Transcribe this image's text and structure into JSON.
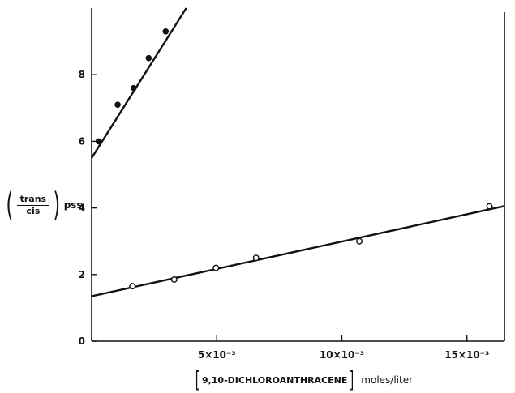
{
  "chart_data": {
    "type": "scatter",
    "title": "",
    "ylabel": {
      "numerator": "trans",
      "denominator": "cis",
      "subscript": "pss"
    },
    "xlabel": {
      "compound": "9,10-DICHLOROANTHRACENE",
      "unit": "moles/liter"
    },
    "xlim": [
      0,
      0.0165
    ],
    "ylim": [
      0,
      10
    ],
    "x_ticks": [
      {
        "value": 0.005,
        "label": "5×10⁻³"
      },
      {
        "value": 0.01,
        "label": "10×10⁻³"
      },
      {
        "value": 0.015,
        "label": "15×10⁻³"
      }
    ],
    "y_ticks": [
      {
        "value": 0,
        "label": "0"
      },
      {
        "value": 2,
        "label": "2"
      },
      {
        "value": 4,
        "label": "4"
      },
      {
        "value": 6,
        "label": "6"
      },
      {
        "value": 8,
        "label": "8"
      }
    ],
    "grid": false,
    "series": [
      {
        "marker": "filled-circle",
        "x": [
          0.00028,
          0.00104,
          0.00168,
          0.00228,
          0.00296
        ],
        "y": [
          6.0,
          7.1,
          7.6,
          8.5,
          9.3
        ],
        "fit": {
          "intercept": 5.5,
          "slope": 1190
        }
      },
      {
        "marker": "open-circle",
        "x": [
          0.00163,
          0.0033,
          0.00497,
          0.00657,
          0.0107,
          0.0159
        ],
        "y": [
          1.65,
          1.85,
          2.2,
          2.5,
          3.0,
          4.05
        ],
        "fit": {
          "intercept": 1.35,
          "slope": 164
        }
      }
    ]
  }
}
